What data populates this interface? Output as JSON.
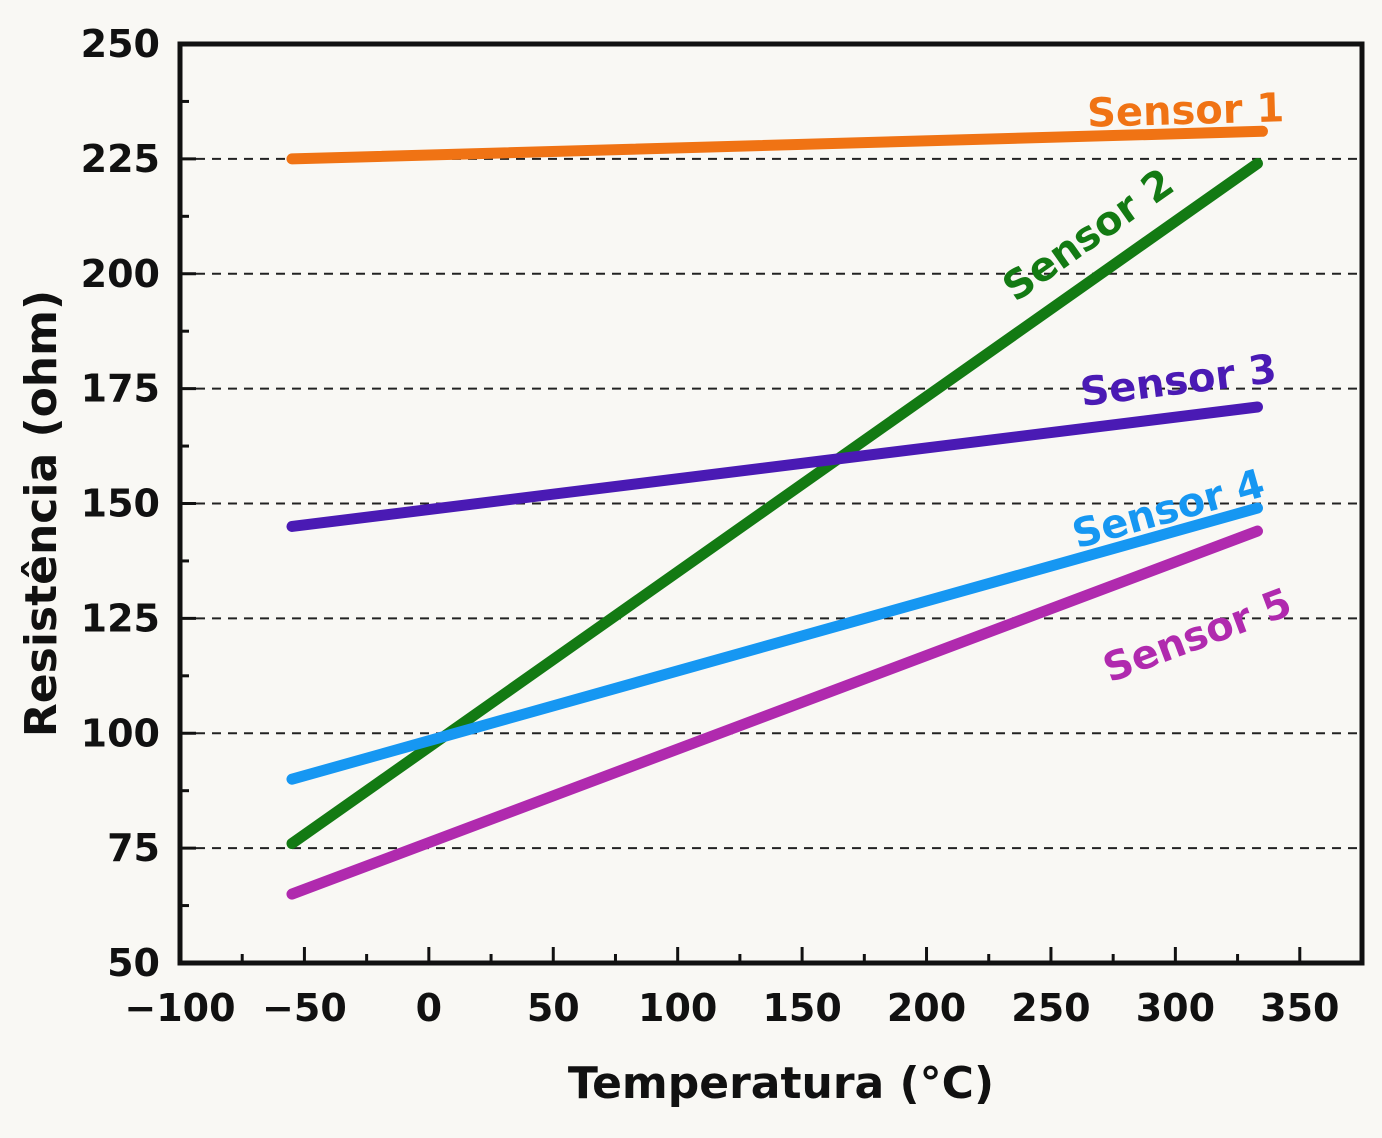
{
  "chart_data": {
    "type": "line",
    "title": "",
    "xlabel": "Temperatura (°C)",
    "ylabel": "Resistência (ohm)",
    "xlim": [
      -100,
      375
    ],
    "ylim": [
      50,
      250
    ],
    "xticks": [
      -100,
      -50,
      0,
      50,
      100,
      150,
      200,
      250,
      300,
      350
    ],
    "xtick_labels": [
      "−100",
      "−50",
      "0",
      "50",
      "100",
      "150",
      "200",
      "250",
      "300",
      "350"
    ],
    "yticks": [
      50,
      75,
      100,
      125,
      150,
      175,
      200,
      225,
      250
    ],
    "yminor_step": 12.5,
    "xminor_step": 25,
    "grid": {
      "y": true,
      "x": false,
      "style": "dashed",
      "levels": [
        75,
        100,
        125,
        150,
        175,
        200,
        225
      ]
    },
    "legend": "inline-labels",
    "series": [
      {
        "name": "Sensor 1",
        "color": "#f07314",
        "x": [
          -55,
          335
        ],
        "y": [
          225,
          231
        ]
      },
      {
        "name": "Sensor 2",
        "color": "#137a13",
        "x": [
          -55,
          333
        ],
        "y": [
          76,
          224
        ]
      },
      {
        "name": "Sensor 3",
        "color": "#4a1ab4",
        "x": [
          -55,
          333
        ],
        "y": [
          145,
          171
        ]
      },
      {
        "name": "Sensor 4",
        "color": "#1697f2",
        "x": [
          -55,
          333
        ],
        "y": [
          90,
          149
        ]
      },
      {
        "name": "Sensor 5",
        "color": "#b02aae",
        "x": [
          -55,
          333
        ],
        "y": [
          65,
          144
        ]
      }
    ]
  }
}
